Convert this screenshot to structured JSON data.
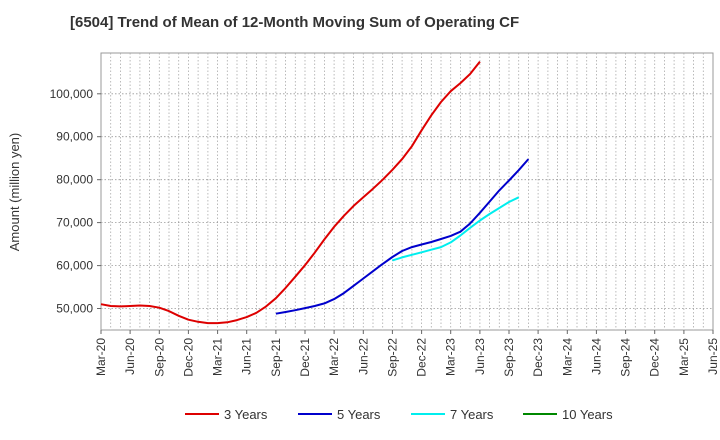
{
  "chart_data": {
    "type": "line",
    "title": "[6504]  Trend of Mean of 12-Month Moving Sum of Operating CF",
    "xlabel": "",
    "ylabel": "Amount (million yen)",
    "x_ticks": [
      "Mar-20",
      "Jun-20",
      "Sep-20",
      "Dec-20",
      "Mar-21",
      "Jun-21",
      "Sep-21",
      "Dec-21",
      "Mar-22",
      "Jun-22",
      "Sep-22",
      "Dec-22",
      "Mar-23",
      "Jun-23",
      "Sep-23",
      "Dec-23",
      "Mar-24",
      "Jun-24",
      "Sep-24",
      "Dec-24",
      "Mar-25",
      "Jun-25"
    ],
    "y_ticks": [
      50000,
      60000,
      70000,
      80000,
      90000,
      100000
    ],
    "y_tick_labels": [
      "50,000",
      "60,000",
      "70,000",
      "80,000",
      "90,000",
      "100,000"
    ],
    "ylim": [
      45000,
      109500
    ],
    "grid": true,
    "series": [
      {
        "name": "3 Years",
        "color": "#dd0000",
        "values": [
          51000,
          50600,
          50500,
          50600,
          50700,
          50600,
          50200,
          49400,
          48300,
          47400,
          46900,
          46600,
          46600,
          46800,
          47300,
          48000,
          49000,
          50500,
          52400,
          54800,
          57400,
          60100,
          63000,
          66100,
          69000,
          71600,
          73900,
          75900,
          77900,
          80000,
          82300,
          84800,
          87800,
          91500,
          95000,
          98100,
          100600,
          102500,
          104600,
          107500
        ],
        "start_index": 0
      },
      {
        "name": "5 Years",
        "color": "#0000cc",
        "values": [
          48800,
          49200,
          49600,
          50100,
          50600,
          51200,
          52200,
          53600,
          55300,
          57000,
          58700,
          60400,
          62000,
          63400,
          64300,
          64900,
          65500,
          66200,
          66900,
          67900,
          69800,
          72300,
          74900,
          77500,
          79800,
          82200,
          84800
        ],
        "start_index": 18
      },
      {
        "name": "7 Years",
        "color": "#00eeee",
        "values": [
          61200,
          61900,
          62500,
          63100,
          63700,
          64300,
          65400,
          67000,
          68800,
          70500,
          72000,
          73400,
          74800,
          75900
        ],
        "start_index": 30
      },
      {
        "name": "10 Years",
        "color": "#008800",
        "values": [],
        "start_index": 0
      }
    ]
  }
}
